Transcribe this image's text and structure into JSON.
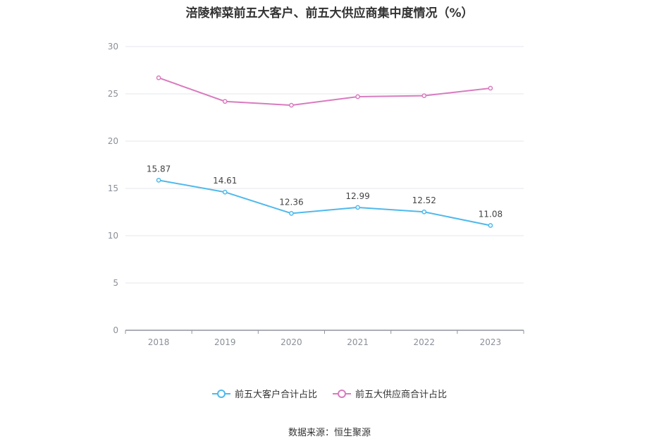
{
  "chart_data": {
    "type": "line",
    "title": "涪陵榨菜前五大客户、前五大供应商集中度情况（%）",
    "categories": [
      "2018",
      "2019",
      "2020",
      "2021",
      "2022",
      "2023"
    ],
    "ylim": [
      0,
      30
    ],
    "yticks": [
      0,
      5,
      10,
      15,
      20,
      25,
      30
    ],
    "grid": true,
    "legend_position": "bottom",
    "series": [
      {
        "name": "前五大客户合计占比",
        "color": "#4fb9ec",
        "values": [
          15.87,
          14.61,
          12.36,
          12.99,
          12.52,
          11.08
        ],
        "data_labels": [
          "15.87",
          "14.61",
          "12.36",
          "12.99",
          "12.52",
          "11.08"
        ]
      },
      {
        "name": "前五大供应商合计占比",
        "color": "#d97bbf",
        "values": [
          26.7,
          24.2,
          23.8,
          24.7,
          24.8,
          25.6
        ]
      }
    ]
  },
  "source": "数据来源：恒生聚源"
}
